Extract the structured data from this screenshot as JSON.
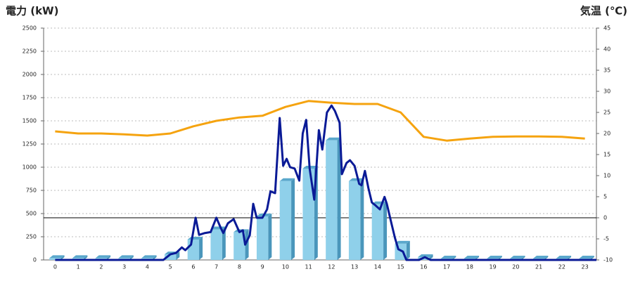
{
  "chart_data": {
    "type": "combo",
    "title": "電力 (kW)",
    "title_color": "#1a7abf",
    "y2_title": "気温 (℃)",
    "y2_title_color": "#f08c1e",
    "categories": [
      "0",
      "1",
      "2",
      "3",
      "4",
      "5",
      "6",
      "7",
      "8",
      "9",
      "10",
      "11",
      "12",
      "13",
      "14",
      "15",
      "16",
      "17",
      "18",
      "19",
      "20",
      "21",
      "22",
      "23"
    ],
    "ylim": [
      0,
      2500
    ],
    "yticks": [
      0,
      250,
      500,
      750,
      1000,
      1250,
      1500,
      1750,
      2000,
      2250,
      2500
    ],
    "y2lim": [
      -10,
      45
    ],
    "y2ticks": [
      -10,
      -5,
      0,
      5,
      10,
      15,
      20,
      25,
      30,
      35,
      40,
      45
    ],
    "y2_refline": 0,
    "grid": true,
    "series": [
      {
        "type": "bar",
        "color": "#8fd0ea",
        "values": [
          20,
          20,
          20,
          20,
          20,
          60,
          220,
          330,
          300,
          470,
          850,
          985,
          1290,
          850,
          600,
          175,
          30,
          15,
          15,
          15,
          15,
          15,
          15,
          15
        ]
      },
      {
        "type": "line",
        "color": "#0a1a96",
        "x": [
          0,
          4.7,
          5.0,
          5.25,
          5.5,
          5.65,
          5.9,
          6.1,
          6.25,
          6.5,
          6.75,
          7.0,
          7.2,
          7.3,
          7.5,
          7.75,
          8.0,
          8.15,
          8.25,
          8.45,
          8.6,
          8.75,
          9.0,
          9.2,
          9.35,
          9.55,
          9.75,
          9.9,
          10.05,
          10.2,
          10.4,
          10.6,
          10.75,
          10.9,
          11.05,
          11.25,
          11.45,
          11.6,
          11.8,
          12.0,
          12.15,
          12.35,
          12.45,
          12.65,
          12.8,
          13.0,
          13.2,
          13.3,
          13.45,
          13.6,
          13.75,
          13.9,
          14.1,
          14.3,
          14.4,
          14.6,
          14.75,
          14.9,
          15.1,
          15.25,
          15.8,
          16.05,
          16.3,
          23.5
        ],
        "values": [
          0,
          0,
          60,
          75,
          135,
          105,
          165,
          455,
          270,
          290,
          300,
          455,
          340,
          290,
          395,
          440,
          300,
          320,
          165,
          265,
          605,
          455,
          455,
          545,
          740,
          720,
          1530,
          1015,
          1090,
          1000,
          985,
          855,
          1365,
          1510,
          985,
          650,
          1400,
          1190,
          1590,
          1665,
          1605,
          1480,
          925,
          1045,
          1075,
          1015,
          820,
          805,
          960,
          775,
          620,
          590,
          545,
          680,
          605,
          395,
          240,
          115,
          90,
          0,
          0,
          30,
          0,
          0
        ]
      },
      {
        "type": "line",
        "axis": "y2",
        "color": "#f5a30f",
        "values": [
          20.5,
          20,
          20,
          19.8,
          19.5,
          20,
          21.7,
          23,
          23.8,
          24.2,
          26.3,
          27.7,
          27.3,
          27,
          27,
          25,
          19.2,
          18.3,
          18.8,
          19.2,
          19.3,
          19.3,
          19.2,
          18.8
        ]
      }
    ]
  }
}
